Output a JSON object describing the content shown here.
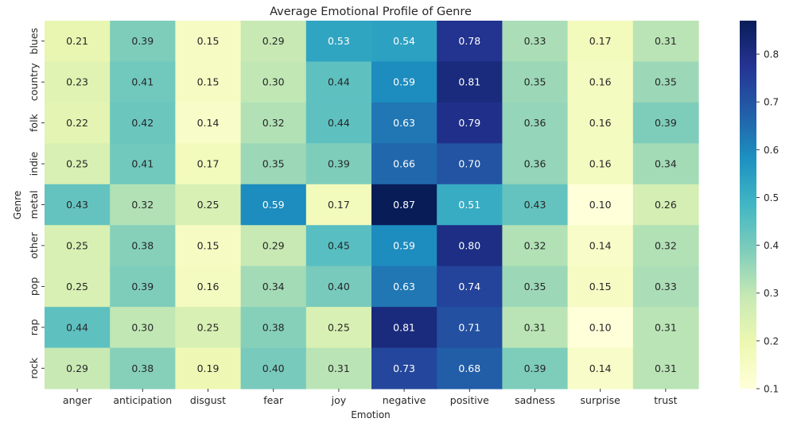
{
  "chart_data": {
    "type": "heatmap",
    "title": "Average Emotional Profile of Genre",
    "xlabel": "Emotion",
    "ylabel": "Genre",
    "x_categories": [
      "anger",
      "anticipation",
      "disgust",
      "fear",
      "joy",
      "negative",
      "positive",
      "sadness",
      "surprise",
      "trust"
    ],
    "y_categories": [
      "blues",
      "country",
      "folk",
      "indie",
      "metal",
      "other",
      "pop",
      "rap",
      "rock"
    ],
    "values": [
      [
        0.21,
        0.39,
        0.15,
        0.29,
        0.53,
        0.54,
        0.78,
        0.33,
        0.17,
        0.31
      ],
      [
        0.23,
        0.41,
        0.15,
        0.3,
        0.44,
        0.59,
        0.81,
        0.35,
        0.16,
        0.35
      ],
      [
        0.22,
        0.42,
        0.14,
        0.32,
        0.44,
        0.63,
        0.79,
        0.36,
        0.16,
        0.39
      ],
      [
        0.25,
        0.41,
        0.17,
        0.35,
        0.39,
        0.66,
        0.7,
        0.36,
        0.16,
        0.34
      ],
      [
        0.43,
        0.32,
        0.25,
        0.59,
        0.17,
        0.87,
        0.51,
        0.43,
        0.1,
        0.26
      ],
      [
        0.25,
        0.38,
        0.15,
        0.29,
        0.45,
        0.59,
        0.8,
        0.32,
        0.14,
        0.32
      ],
      [
        0.25,
        0.39,
        0.16,
        0.34,
        0.4,
        0.63,
        0.74,
        0.35,
        0.15,
        0.33
      ],
      [
        0.44,
        0.3,
        0.25,
        0.38,
        0.25,
        0.81,
        0.71,
        0.31,
        0.1,
        0.31
      ],
      [
        0.29,
        0.38,
        0.19,
        0.4,
        0.31,
        0.73,
        0.68,
        0.39,
        0.14,
        0.31
      ]
    ],
    "colorscale": "YlGnBu",
    "color_range": [
      0.1,
      0.87
    ],
    "colorbar_ticks": [
      0.1,
      0.2,
      0.3,
      0.4,
      0.5,
      0.6,
      0.7,
      0.8
    ],
    "colorbar_tick_labels": [
      "0.1",
      "0.2",
      "0.3",
      "0.4",
      "0.5",
      "0.6",
      "0.7",
      "0.8"
    ],
    "annotate_cells": true,
    "annotation_format": "0.00",
    "grid": false,
    "legend": "colorbar-right"
  }
}
